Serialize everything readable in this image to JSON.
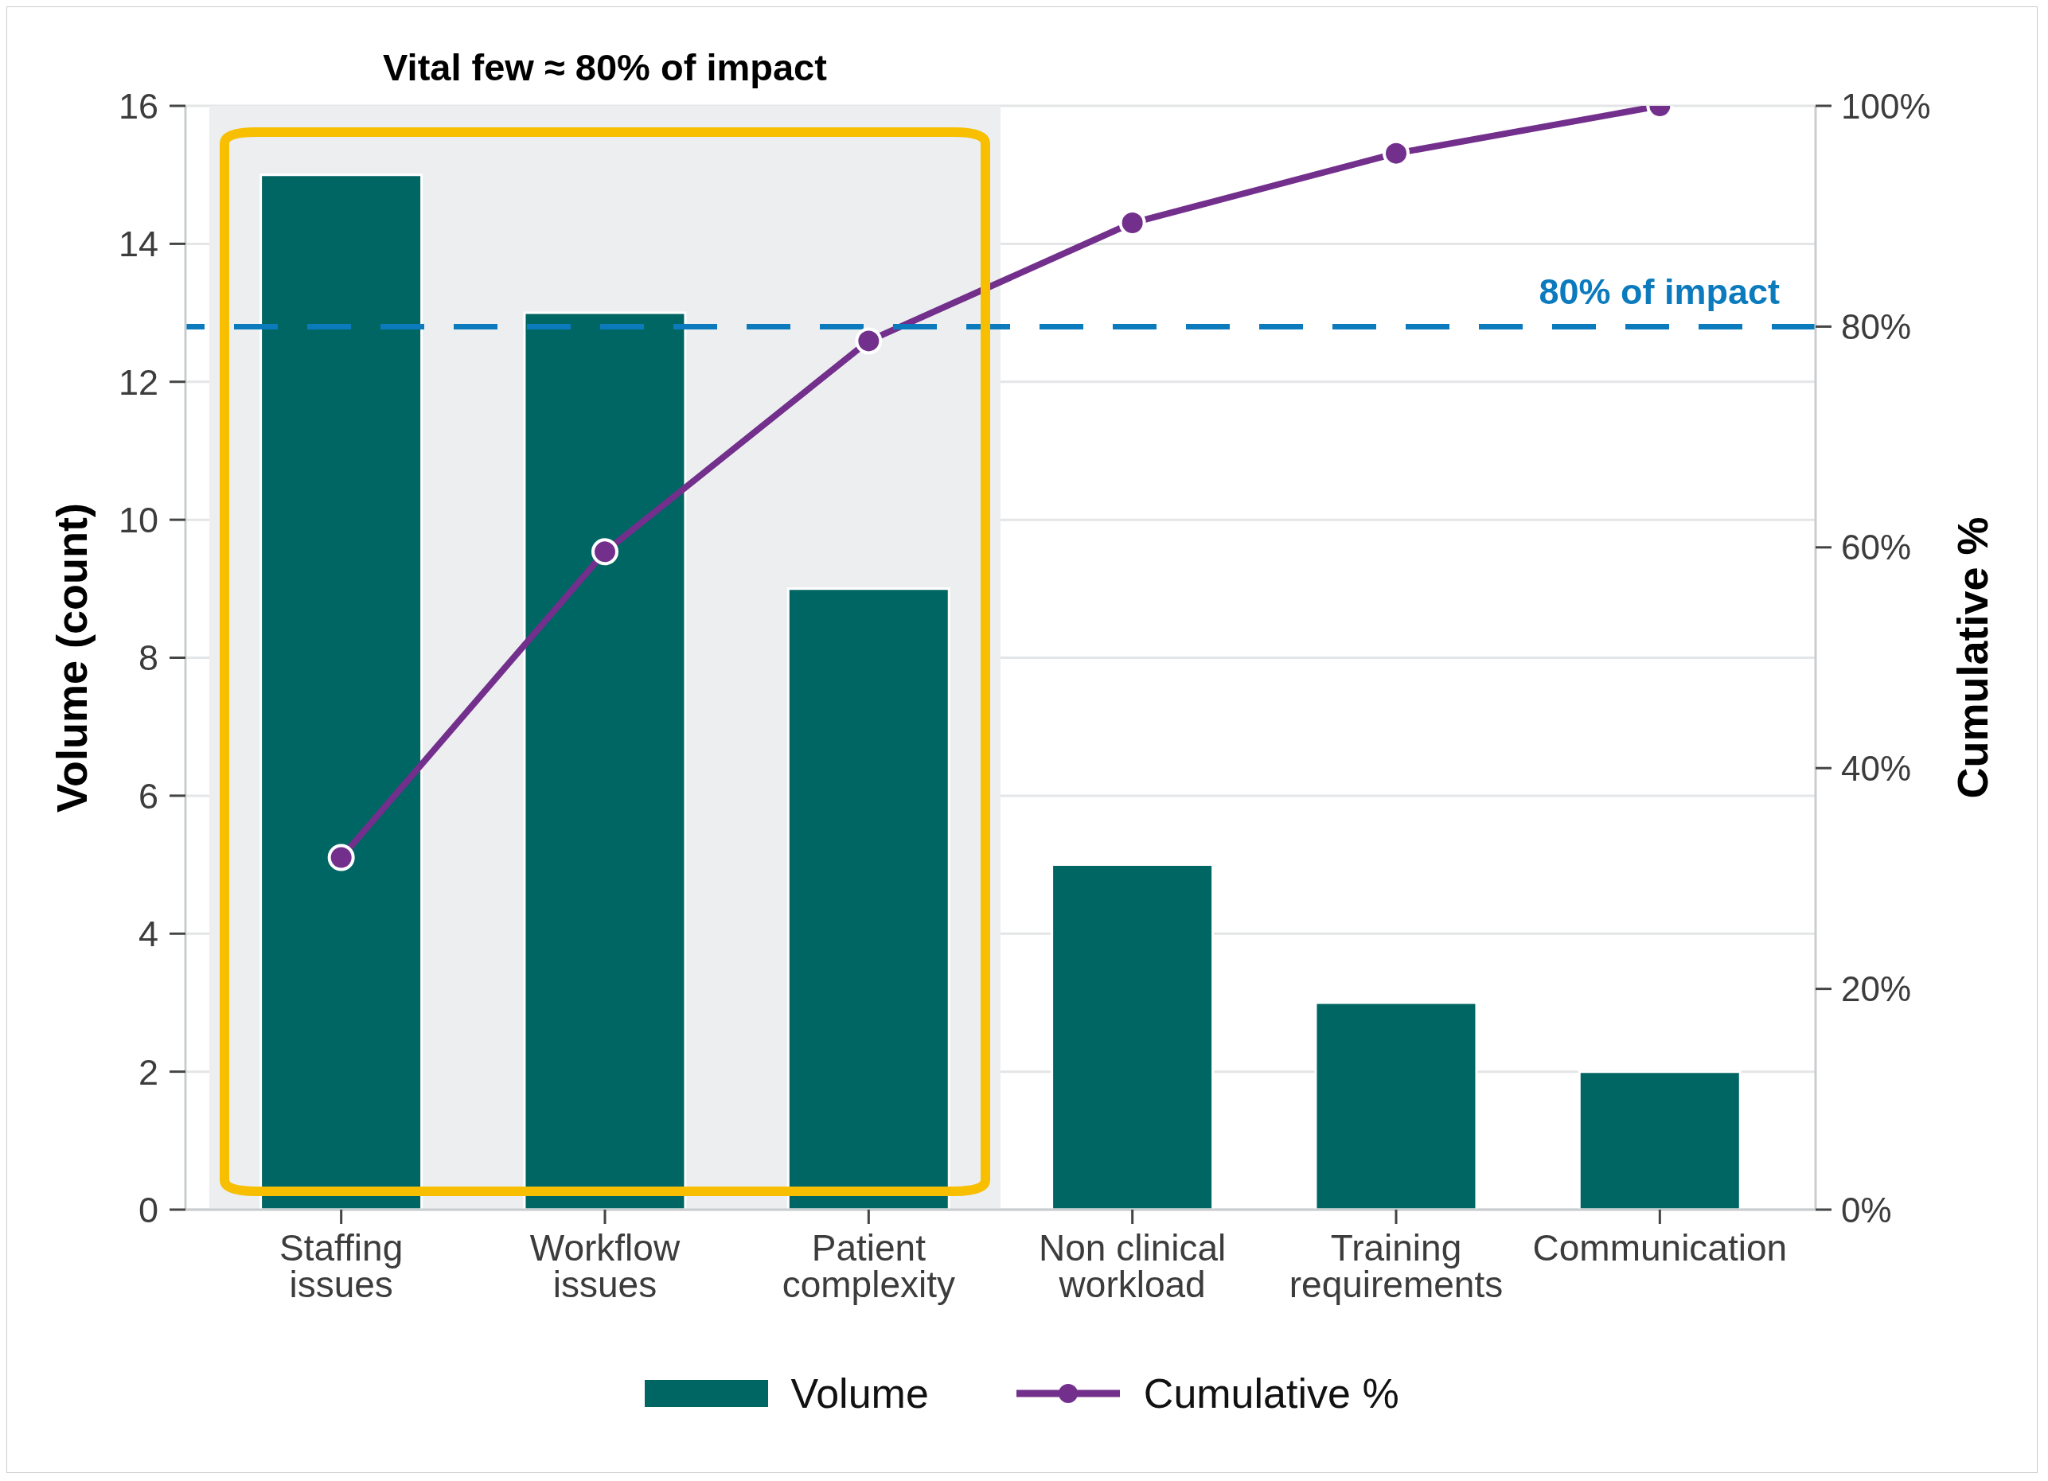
{
  "chart_data": {
    "type": "bar",
    "categories": [
      "Staffing issues",
      "Workflow issues",
      "Patient complexity",
      "Non clinical workload",
      "Training requirements",
      "Communication"
    ],
    "series": [
      {
        "name": "Volume",
        "color": "#006663",
        "values": [
          15,
          13,
          9,
          5,
          3,
          2
        ]
      },
      {
        "name": "Cumulative %",
        "type": "line",
        "axis": "y2",
        "color": "#732f8c",
        "values": [
          31.9,
          59.6,
          78.7,
          89.4,
          95.7,
          100
        ]
      }
    ],
    "ylabel": "Volume (count)",
    "y2label": "Cumulative %",
    "ylim": [
      0,
      16
    ],
    "yticks": [
      0,
      2,
      4,
      6,
      8,
      10,
      12,
      14,
      16
    ],
    "y2lim": [
      0,
      100
    ],
    "y2ticks": [
      {
        "value": 0,
        "label": "0%"
      },
      {
        "value": 20,
        "label": "20%"
      },
      {
        "value": 40,
        "label": "40%"
      },
      {
        "value": 60,
        "label": "60%"
      },
      {
        "value": 80,
        "label": "80%"
      },
      {
        "value": 100,
        "label": "100%"
      }
    ],
    "ref_lines": [
      {
        "axis": "y2",
        "value": 80,
        "label": "80% of impact",
        "color": "#0b7bbd",
        "line_style": "dashed"
      }
    ],
    "bands": [
      {
        "axis": "x",
        "from": "Staffing issues",
        "to": "Patient complexity",
        "label": "Vital few ≈ 80% of impact",
        "color": "#eceef0"
      }
    ],
    "grid": "y",
    "legend": "bottom",
    "marker": "circle",
    "line_style": "solid"
  }
}
